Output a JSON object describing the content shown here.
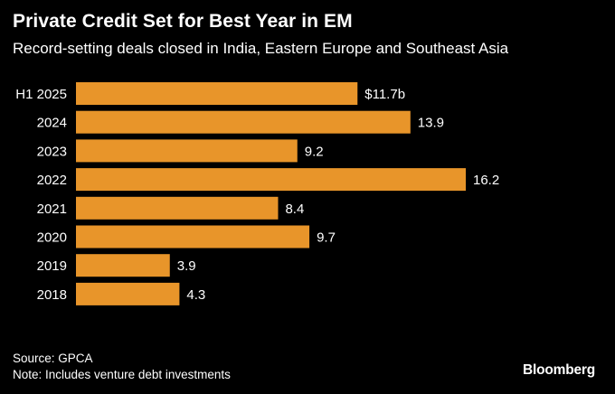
{
  "header": {
    "title": "Private Credit Set for Best Year in EM",
    "subtitle": "Record-setting deals closed in India, Eastern Europe and Southeast Asia"
  },
  "chart_data": {
    "type": "bar",
    "orientation": "horizontal",
    "title": "Private Credit Set for Best Year in EM",
    "subtitle": "Record-setting deals closed in India, Eastern Europe and Southeast Asia",
    "xlabel": "",
    "ylabel": "",
    "unit": "$ billion",
    "categories": [
      "H1 2025",
      "2024",
      "2023",
      "2022",
      "2021",
      "2020",
      "2019",
      "2018"
    ],
    "values": [
      11.7,
      13.9,
      9.2,
      16.2,
      8.4,
      9.7,
      3.9,
      4.3
    ],
    "data_labels": [
      "$11.7b",
      "13.9",
      "9.2",
      "16.2",
      "8.4",
      "9.7",
      "3.9",
      "4.3"
    ],
    "xlim": [
      0,
      16.2
    ],
    "grid": false,
    "bar_color": "#e8952a"
  },
  "footer": {
    "source": "Source: GPCA",
    "note": "Note: Includes venture debt investments",
    "brand": "Bloomberg"
  },
  "colors": {
    "background": "#000000",
    "text": "#ffffff",
    "bar": "#e8952a"
  }
}
